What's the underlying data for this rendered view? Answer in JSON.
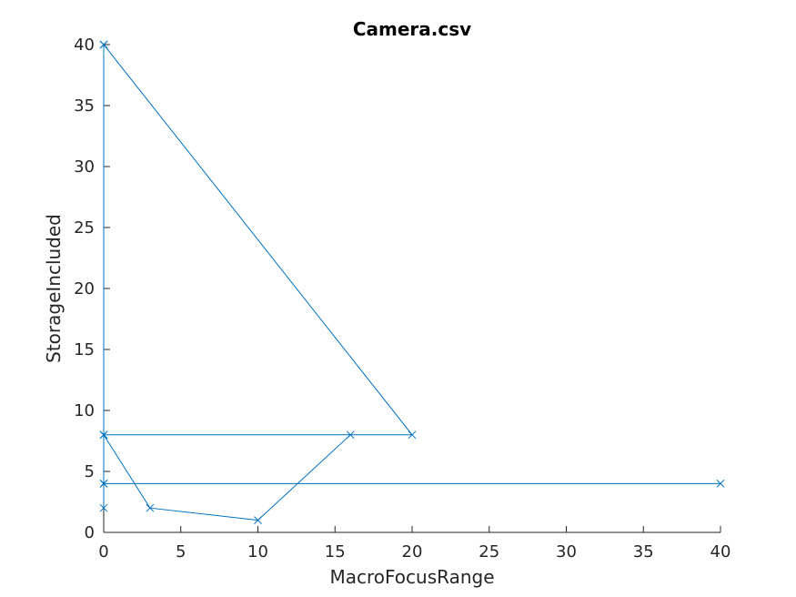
{
  "chart_data": {
    "type": "line",
    "title": "Camera.csv",
    "xlabel": "MacroFocusRange",
    "ylabel": "StorageIncluded",
    "xlim": [
      0,
      40
    ],
    "ylim": [
      0,
      40
    ],
    "xticks": [
      0,
      5,
      10,
      15,
      20,
      25,
      30,
      35,
      40
    ],
    "yticks": [
      0,
      5,
      10,
      15,
      20,
      25,
      30,
      35,
      40
    ],
    "grid": false,
    "marker": "x",
    "series": [
      {
        "color": "#0072BD",
        "points": [
          [
            0,
            40
          ],
          [
            0,
            8
          ],
          [
            0,
            4
          ],
          [
            0,
            2
          ],
          [
            0,
            8
          ],
          [
            3,
            2
          ],
          [
            10,
            1
          ],
          [
            16,
            8
          ],
          [
            0,
            8
          ],
          [
            20,
            8
          ],
          [
            0,
            40
          ],
          [
            0,
            4
          ],
          [
            40,
            4
          ]
        ]
      }
    ]
  }
}
